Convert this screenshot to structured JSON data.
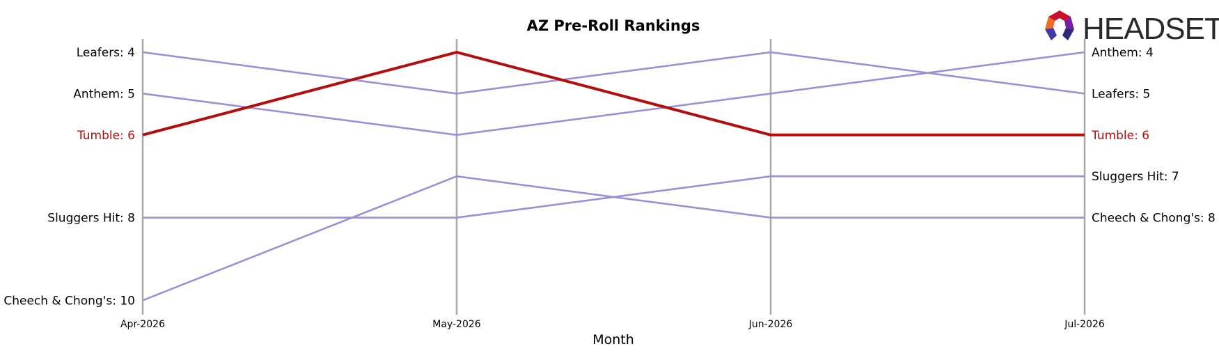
{
  "logo": {
    "text": "HEADSET"
  },
  "chart_data": {
    "type": "line",
    "title": "AZ Pre-Roll Rankings",
    "xlabel": "Month",
    "ylabel": "",
    "x": [
      "Apr-2026",
      "May-2026",
      "Jun-2026",
      "Jul-2026"
    ],
    "y_inverted": true,
    "ylim": [
      10,
      4
    ],
    "grid": "vertical lines at each month",
    "highlight_color": "#b30e0e",
    "other_color": "#9b8fd8",
    "series": [
      {
        "name": "Leafers",
        "values": [
          4,
          5,
          4,
          5
        ],
        "highlight": false
      },
      {
        "name": "Anthem",
        "values": [
          5,
          6,
          5,
          4
        ],
        "highlight": false
      },
      {
        "name": "Tumble",
        "values": [
          6,
          4,
          6,
          6
        ],
        "highlight": true
      },
      {
        "name": "Sluggers Hit",
        "values": [
          8,
          8,
          7,
          7
        ],
        "highlight": false
      },
      {
        "name": "Cheech & Chong's",
        "values": [
          10,
          7,
          8,
          8
        ],
        "highlight": false
      }
    ],
    "left_labels": [
      "Leafers: 4",
      "Anthem: 5",
      "Tumble: 6",
      "Sluggers Hit: 8",
      "Cheech & Chong's: 10"
    ],
    "right_labels": [
      "Anthem: 4",
      "Leafers: 5",
      "Tumble: 6",
      "Sluggers Hit: 7",
      "Cheech & Chong's: 8"
    ]
  }
}
